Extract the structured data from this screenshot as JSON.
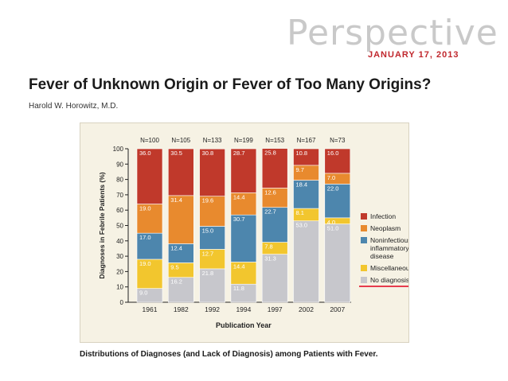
{
  "header": {
    "journal_word": "Perspective",
    "date": "JANUARY 17, 2013",
    "title": "Fever of Unknown Origin or Fever of Too Many Origins?",
    "author": "Harold W. Horowitz, M.D."
  },
  "caption": "Distributions of Diagnoses (and Lack of Diagnosis) among Patients with Fever.",
  "colors": {
    "Infection": "#c0392b",
    "Neoplasm": "#e88a2e",
    "Noninfectious inflammatory disease": "#4d86ad",
    "Miscellaneous": "#f2c62e",
    "No diagnosis": "#c7c7cc",
    "underline": "#e0001b"
  },
  "chart_data": {
    "type": "bar",
    "stacked": true,
    "title": "",
    "xlabel": "Publication Year",
    "ylabel": "Diagnoses in Febrile Patients (%)",
    "ylim": [
      0,
      100
    ],
    "yticks": [
      0,
      10,
      20,
      30,
      40,
      50,
      60,
      70,
      80,
      90,
      100
    ],
    "categories": [
      "1961",
      "1982",
      "1992",
      "1994",
      "1997",
      "2002",
      "2007"
    ],
    "n_labels": [
      "N=100",
      "N=105",
      "N=133",
      "N=199",
      "N=153",
      "N=167",
      "N=73"
    ],
    "series": [
      {
        "name": "No diagnosis",
        "values": [
          9.0,
          16.2,
          21.8,
          11.8,
          31.3,
          53.0,
          51.0
        ],
        "labels": [
          "9.0",
          "16.2",
          "21.8",
          "11.8",
          "31.3",
          "53.0",
          "51.0"
        ]
      },
      {
        "name": "Miscellaneous",
        "values": [
          19.0,
          9.5,
          12.7,
          14.4,
          7.8,
          8.1,
          4.0
        ],
        "labels": [
          "19.0",
          "9.5",
          "12.7",
          "14.4",
          "7.8",
          "8.1",
          "4.0"
        ]
      },
      {
        "name": "Noninfectious inflammatory disease",
        "values": [
          17.0,
          12.4,
          15.0,
          30.7,
          22.7,
          18.4,
          22.0
        ],
        "labels": [
          "17.0",
          "12.4",
          "15.0",
          "30.7",
          "22.7",
          "18.4",
          "22.0"
        ]
      },
      {
        "name": "Neoplasm",
        "values": [
          19.0,
          31.4,
          19.6,
          14.4,
          12.6,
          9.7,
          7.0
        ],
        "labels": [
          "19.0",
          "31.4",
          "19.6",
          "14.4",
          "12.6",
          "9.7",
          "7.0"
        ]
      },
      {
        "name": "Infection",
        "values": [
          36.0,
          30.5,
          30.8,
          28.7,
          25.8,
          10.8,
          16.0
        ],
        "labels": [
          "36.0",
          "30.5",
          "30.8",
          "28.7",
          "25.8",
          "10.8",
          "16.0"
        ]
      }
    ],
    "legend": {
      "position": "right",
      "items": [
        "Infection",
        "Neoplasm",
        "Noninfectious inflammatory disease",
        "Miscellaneous",
        "No diagnosis"
      ],
      "display_lines": [
        [
          "Infection"
        ],
        [
          "Neoplasm"
        ],
        [
          "Noninfectious",
          "inflammatory",
          "disease"
        ],
        [
          "Miscellaneous"
        ],
        [
          "No diagnosis"
        ]
      ],
      "highlighted": "No diagnosis"
    }
  }
}
